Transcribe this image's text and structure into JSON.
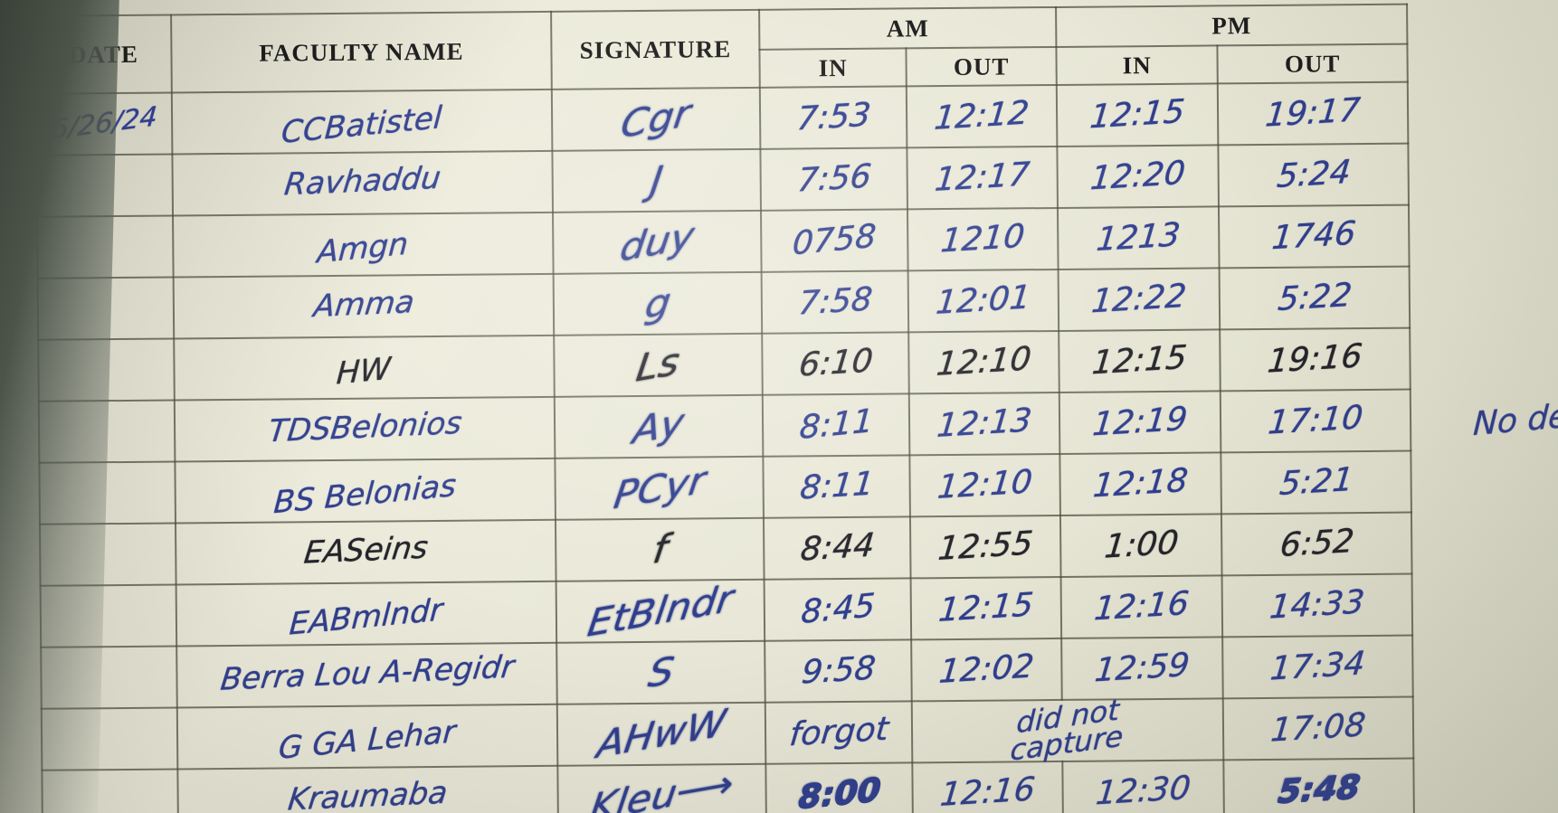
{
  "table": {
    "headers": {
      "date": "DATE",
      "faculty": "FACULTY NAME",
      "signature": "SIGNATURE",
      "am": "AM",
      "pm": "PM",
      "in": "IN",
      "out": "OUT"
    },
    "date_value": "6/26/24",
    "rows": [
      {
        "date": "6/26/24",
        "name": "CCBatistel",
        "signature": "Cgr",
        "am_in": "7:53",
        "am_out": "12:12",
        "pm_in": "12:15",
        "pm_out": "19:17",
        "ink": "blue"
      },
      {
        "date": "",
        "name": "Ravhaddu",
        "signature": "J",
        "am_in": "7:56",
        "am_out": "12:17",
        "pm_in": "12:20",
        "pm_out": "5:24",
        "ink": "blue"
      },
      {
        "date": "",
        "name": "Amgn",
        "signature": "duy",
        "am_in": "0758",
        "am_out": "1210",
        "pm_in": "1213",
        "pm_out": "1746",
        "ink": "blue"
      },
      {
        "date": "",
        "name": "Amma",
        "signature": "g",
        "am_in": "7:58",
        "am_out": "12:01",
        "pm_in": "12:22",
        "pm_out": "5:22",
        "ink": "blue"
      },
      {
        "date": "",
        "name": "HW",
        "signature": "Ls",
        "am_in": "6:10",
        "am_out": "12:10",
        "pm_in": "12:15",
        "pm_out": "19:16",
        "ink": "black"
      },
      {
        "date": "",
        "name": "TDSBelonios",
        "signature": "Ay",
        "am_in": "8:11",
        "am_out": "12:13",
        "pm_in": "12:19",
        "pm_out": "17:10",
        "ink": "blue"
      },
      {
        "date": "",
        "name": "BS Belonias",
        "signature": "PCyr",
        "am_in": "8:11",
        "am_out": "12:10",
        "pm_in": "12:18",
        "pm_out": "5:21",
        "ink": "blue"
      },
      {
        "date": "",
        "name": "EASeins",
        "signature": "f",
        "am_in": "8:44",
        "am_out": "12:55",
        "pm_in": "1:00",
        "pm_out": "6:52",
        "ink": "black"
      },
      {
        "date": "",
        "name": "EABmlndr",
        "signature": "EtBlndr",
        "am_in": "8:45",
        "am_out": "12:15",
        "pm_in": "12:16",
        "pm_out": "14:33",
        "ink": "blue"
      },
      {
        "date": "",
        "name": "Berra Lou A-Regidr",
        "signature": "S",
        "am_in": "9:58",
        "am_out": "12:02",
        "pm_in": "12:59",
        "pm_out": "17:34",
        "ink": "blue"
      },
      {
        "date": "",
        "name": "G GA Lehar",
        "signature": "AHwW",
        "am_in": "forgot",
        "span_note": "did not\ncapture",
        "pm_out": "17:08",
        "ink": "blue"
      },
      {
        "date": "",
        "name": "Kraumaba",
        "signature": "Kleu⟶",
        "am_in": "8:00",
        "am_out": "12:16",
        "pm_in": "12:30",
        "pm_out": "5:48",
        "ink": "blue",
        "bold": [
          "am_in",
          "pm_out"
        ]
      }
    ],
    "margin_note": "No de"
  },
  "colors": {
    "paper": "#e9e8d8",
    "ink_blue": "#2f3e8e",
    "ink_black": "#23232a",
    "grid_line": "#48483a",
    "printed_text": "#1c1c1c",
    "photo_edge": "#4c544a"
  }
}
